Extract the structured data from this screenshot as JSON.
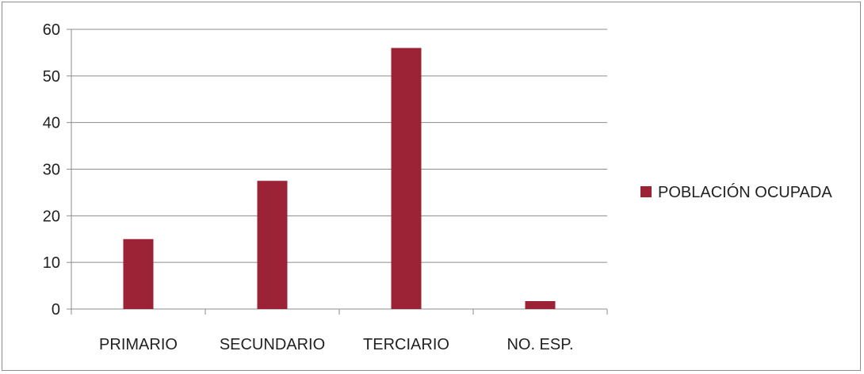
{
  "chart_data": {
    "type": "bar",
    "categories": [
      "PRIMARIO",
      "SECUNDARIO",
      "TERCIARIO",
      "NO. ESP."
    ],
    "series": [
      {
        "name": "POBLACIÓN OCUPADA",
        "values": [
          15,
          27.5,
          56,
          1.7
        ],
        "color": "#9b2335"
      }
    ],
    "ylim": [
      0,
      60
    ],
    "yticks": [
      0,
      10,
      20,
      30,
      40,
      50,
      60
    ],
    "grid": true,
    "legend": "right",
    "title": "",
    "xlabel": "",
    "ylabel": ""
  }
}
